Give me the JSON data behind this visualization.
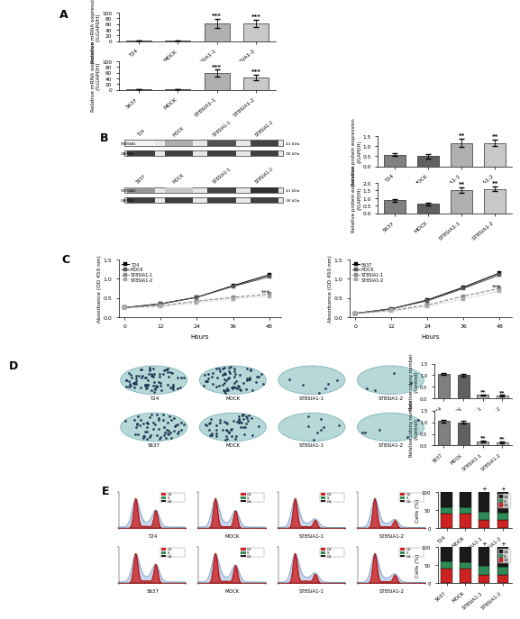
{
  "panel_A": {
    "T24": {
      "categories": [
        "T24",
        "MOCK",
        "ST8SIA1-1",
        "ST8SIA1-2"
      ],
      "values": [
        1,
        1,
        62,
        62
      ],
      "errors": [
        0.1,
        0.1,
        15,
        12
      ],
      "ylabel": "Relative mRNA expression\n(%GAPDH)",
      "ylim": [
        0,
        100
      ],
      "yticks": [
        0,
        20,
        40,
        60,
        80,
        100
      ],
      "sig": [
        "",
        "",
        "***",
        "***"
      ]
    },
    "5637": {
      "categories": [
        "5637",
        "MOCK",
        "ST8SIA1-1",
        "ST8SIA1-2"
      ],
      "values": [
        1,
        1,
        58,
        42
      ],
      "errors": [
        0.1,
        0.1,
        12,
        10
      ],
      "ylabel": "Relative mRNA expression\n(%GAPDH)",
      "ylim": [
        0,
        100
      ],
      "yticks": [
        0,
        20,
        40,
        60,
        80,
        100
      ],
      "sig": [
        "",
        "",
        "***",
        "***"
      ]
    }
  },
  "panel_B": {
    "T24": {
      "categories": [
        "T24",
        "MOCK",
        "ST8SIA1-1",
        "ST8SIA1-2"
      ],
      "values": [
        0.58,
        0.5,
        1.15,
        1.15
      ],
      "errors": [
        0.08,
        0.1,
        0.2,
        0.15
      ],
      "ylabel": "Relative protein expression\n(/GAPDH)",
      "ylim": [
        0,
        1.5
      ],
      "yticks": [
        0.0,
        0.5,
        1.0,
        1.5
      ],
      "sig": [
        "",
        "",
        "**",
        "**"
      ]
    },
    "5637": {
      "categories": [
        "5637",
        "MOCK",
        "ST8SIA1-1",
        "ST8SIA1-2"
      ],
      "values": [
        0.85,
        0.62,
        1.5,
        1.6
      ],
      "errors": [
        0.1,
        0.08,
        0.18,
        0.15
      ],
      "ylabel": "Relative protein expression\n(/GAPDH)",
      "ylim": [
        0,
        2.0
      ],
      "yticks": [
        0.0,
        0.5,
        1.0,
        1.5,
        2.0
      ],
      "sig": [
        "",
        "",
        "**",
        "**"
      ]
    }
  },
  "panel_C": {
    "T24": {
      "hours": [
        0,
        12,
        24,
        36,
        48
      ],
      "series": [
        [
          0.25,
          0.35,
          0.52,
          0.82,
          1.1
        ],
        [
          0.25,
          0.35,
          0.52,
          0.8,
          1.05
        ],
        [
          0.25,
          0.3,
          0.42,
          0.52,
          0.6
        ],
        [
          0.25,
          0.28,
          0.38,
          0.48,
          0.55
        ]
      ],
      "labels": [
        "T24",
        "MOCK",
        "ST8SIA1-1",
        "ST8SIA1-2"
      ],
      "ylabel": "Absorbance (OD 450 nm)",
      "xlabel": "Hours",
      "ylim": [
        0,
        1.5
      ],
      "yticks": [
        0.0,
        0.5,
        1.0,
        1.5
      ]
    },
    "5637": {
      "hours": [
        0,
        12,
        24,
        36,
        48
      ],
      "series": [
        [
          0.1,
          0.22,
          0.45,
          0.78,
          1.15
        ],
        [
          0.1,
          0.22,
          0.43,
          0.75,
          1.1
        ],
        [
          0.1,
          0.18,
          0.32,
          0.55,
          0.75
        ],
        [
          0.1,
          0.16,
          0.28,
          0.48,
          0.68
        ]
      ],
      "labels": [
        "5637",
        "MOCK",
        "ST8SIA1-1",
        "ST8SIA1-2"
      ],
      "ylabel": "Absorbance (OD 450 nm)",
      "xlabel": "Hours",
      "ylim": [
        0,
        1.5
      ],
      "yticks": [
        0.0,
        0.5,
        1.0,
        1.5
      ]
    }
  },
  "panel_D": {
    "T24": {
      "categories": [
        "T24",
        "MOCK",
        "ST8SIA1-1",
        "ST8SIA1-2"
      ],
      "values": [
        1.05,
        1.0,
        0.15,
        0.12
      ],
      "errors": [
        0.05,
        0.05,
        0.03,
        0.03
      ],
      "ylabel": "Relative colony number\n(/control)",
      "ylim": [
        0,
        1.5
      ],
      "yticks": [
        0.0,
        0.5,
        1.0,
        1.5
      ],
      "sig": [
        "",
        "",
        "**",
        "**"
      ],
      "dot_counts": [
        80,
        70,
        6,
        4
      ]
    },
    "5637": {
      "categories": [
        "5637",
        "MOCK",
        "ST8SIA1-1",
        "ST8SIA1-2"
      ],
      "values": [
        1.05,
        1.0,
        0.18,
        0.15
      ],
      "errors": [
        0.05,
        0.05,
        0.04,
        0.04
      ],
      "ylabel": "Relative colony number\n(/control)",
      "ylim": [
        0,
        1.5
      ],
      "yticks": [
        0.0,
        0.5,
        1.0,
        1.5
      ],
      "sig": [
        "",
        "",
        "**",
        "**"
      ],
      "dot_counts": [
        60,
        55,
        8,
        5
      ]
    }
  },
  "panel_E": {
    "T24": {
      "categories": [
        "T24",
        "MOCK",
        "ST8SIA1-1",
        "ST8SIA1-2"
      ],
      "G1": [
        42,
        43,
        55,
        57
      ],
      "S": [
        18,
        17,
        22,
        20
      ],
      "G2": [
        40,
        40,
        23,
        23
      ],
      "ylabel": "Cells (%)",
      "ylim": [
        0,
        100
      ],
      "yticks": [
        0,
        50,
        100
      ]
    },
    "5637": {
      "categories": [
        "5637",
        "MOCK",
        "ST8SIA1-1",
        "ST8SIA1-2"
      ],
      "G1": [
        40,
        42,
        52,
        55
      ],
      "S": [
        20,
        18,
        24,
        22
      ],
      "G2": [
        40,
        40,
        24,
        23
      ],
      "ylabel": "Cells (%)",
      "ylim": [
        0,
        100
      ],
      "yticks": [
        0,
        50,
        100
      ]
    }
  },
  "colors": {
    "bar1": "#808080",
    "bar2": "#606060",
    "bar3": "#b0b0b0",
    "bar4": "#c8c8c8",
    "teal": "#7ab8b8",
    "G1_color": "#1a1a1a",
    "S_color": "#2e8b57",
    "G2_color": "#cc2222"
  }
}
